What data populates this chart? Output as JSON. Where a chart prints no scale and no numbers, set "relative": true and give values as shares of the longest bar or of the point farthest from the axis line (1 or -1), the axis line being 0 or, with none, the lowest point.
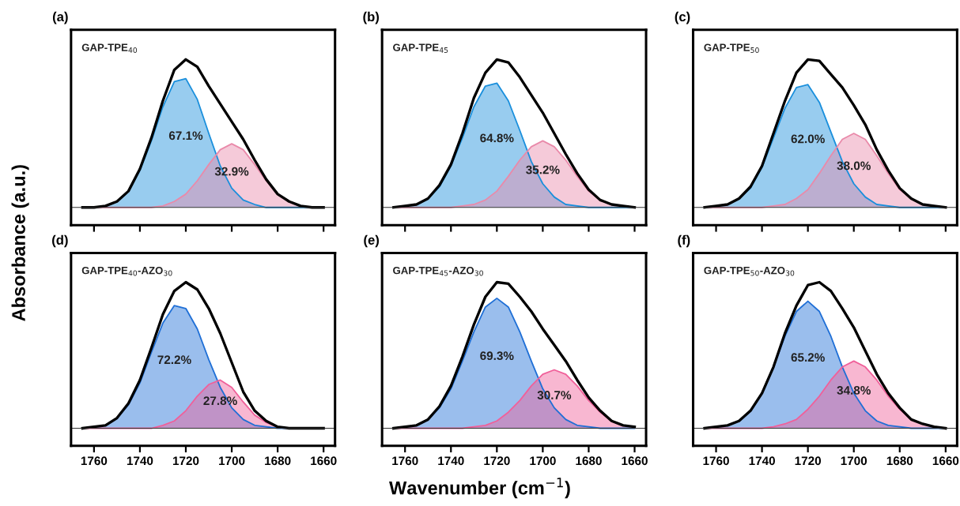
{
  "chart_data": [
    {
      "type": "area",
      "title": "(a)",
      "ylabel": "Absorbance (a.u.)",
      "relative": true,
      "tick_labels": false,
      "xlim": [
        1770,
        1655
      ],
      "xticks": [
        1760,
        1740,
        1720,
        1700,
        1680,
        1660
      ],
      "x": [
        1765,
        1760,
        1755,
        1750,
        1745,
        1740,
        1735,
        1730,
        1725,
        1720,
        1715,
        1710,
        1705,
        1700,
        1695,
        1690,
        1685,
        1680,
        1675,
        1670,
        1665,
        1660
      ],
      "annotations": [
        "GAP-TPE$_{40}$",
        "67.1%",
        "32.9%"
      ],
      "series": [
        {
          "color": "#1a8fdc",
          "values": [
            0,
            0,
            0.01,
            0.04,
            0.11,
            0.25,
            0.45,
            0.68,
            0.85,
            0.87,
            0.73,
            0.5,
            0.28,
            0.13,
            0.05,
            0.02,
            0,
            0,
            0,
            0,
            0,
            0
          ]
        },
        {
          "color": "#e98aaa",
          "values": [
            0,
            0,
            0,
            0,
            0,
            0,
            0,
            0.01,
            0.04,
            0.09,
            0.18,
            0.29,
            0.39,
            0.43,
            0.39,
            0.29,
            0.18,
            0.09,
            0.04,
            0.01,
            0,
            0
          ]
        },
        {
          "type": "line",
          "color": "#000000",
          "values": [
            0,
            0,
            0.01,
            0.04,
            0.11,
            0.26,
            0.47,
            0.72,
            0.93,
            1.0,
            0.95,
            0.82,
            0.7,
            0.58,
            0.46,
            0.32,
            0.19,
            0.09,
            0.04,
            0.01,
            0,
            0
          ]
        }
      ]
    },
    {
      "type": "area",
      "title": "(b)",
      "relative": true,
      "tick_labels": false,
      "xlim": [
        1770,
        1655
      ],
      "xticks": [
        1760,
        1740,
        1720,
        1700,
        1680,
        1660
      ],
      "x": [
        1765,
        1760,
        1755,
        1750,
        1745,
        1740,
        1735,
        1730,
        1725,
        1720,
        1715,
        1710,
        1705,
        1700,
        1695,
        1690,
        1685,
        1680,
        1675,
        1670,
        1665,
        1660
      ],
      "annotations": [
        "GAP-TPE$_{45}$",
        "64.8%",
        "35.2%"
      ],
      "series": [
        {
          "color": "#1a8fdc",
          "values": [
            0,
            0.01,
            0.02,
            0.06,
            0.14,
            0.28,
            0.47,
            0.68,
            0.82,
            0.84,
            0.72,
            0.52,
            0.31,
            0.16,
            0.07,
            0.02,
            0.01,
            0,
            0,
            0,
            0,
            0
          ]
        },
        {
          "color": "#e98aaa",
          "values": [
            0,
            0,
            0,
            0,
            0,
            0,
            0.01,
            0.02,
            0.05,
            0.11,
            0.21,
            0.32,
            0.41,
            0.45,
            0.41,
            0.32,
            0.21,
            0.11,
            0.05,
            0.02,
            0.01,
            0
          ]
        },
        {
          "type": "line",
          "color": "#000000",
          "values": [
            0,
            0.01,
            0.02,
            0.06,
            0.15,
            0.29,
            0.5,
            0.74,
            0.91,
            1.0,
            0.98,
            0.88,
            0.76,
            0.64,
            0.5,
            0.36,
            0.23,
            0.12,
            0.05,
            0.02,
            0.01,
            0
          ]
        }
      ]
    },
    {
      "type": "area",
      "title": "(c)",
      "relative": true,
      "tick_labels": false,
      "xlim": [
        1770,
        1655
      ],
      "xticks": [
        1760,
        1740,
        1720,
        1700,
        1680,
        1660
      ],
      "x": [
        1765,
        1760,
        1755,
        1750,
        1745,
        1740,
        1735,
        1730,
        1725,
        1720,
        1715,
        1710,
        1705,
        1700,
        1695,
        1690,
        1685,
        1680,
        1675,
        1670,
        1665,
        1660
      ],
      "annotations": [
        "GAP-TPE$_{50}$",
        "62.0%",
        "38.0%"
      ],
      "series": [
        {
          "color": "#1a8fdc",
          "values": [
            0,
            0.01,
            0.02,
            0.06,
            0.13,
            0.27,
            0.47,
            0.67,
            0.81,
            0.83,
            0.71,
            0.51,
            0.31,
            0.16,
            0.07,
            0.02,
            0.01,
            0,
            0,
            0,
            0,
            0
          ]
        },
        {
          "color": "#e98aaa",
          "values": [
            0,
            0,
            0,
            0,
            0,
            0,
            0.01,
            0.02,
            0.06,
            0.12,
            0.23,
            0.35,
            0.46,
            0.5,
            0.46,
            0.35,
            0.23,
            0.12,
            0.06,
            0.02,
            0.01,
            0
          ]
        },
        {
          "type": "line",
          "color": "#000000",
          "values": [
            0,
            0.01,
            0.02,
            0.06,
            0.14,
            0.28,
            0.5,
            0.72,
            0.91,
            1.0,
            0.99,
            0.9,
            0.81,
            0.69,
            0.56,
            0.39,
            0.25,
            0.13,
            0.06,
            0.02,
            0.01,
            0
          ]
        }
      ]
    },
    {
      "type": "area",
      "title": "(d)",
      "relative": true,
      "tick_labels": "x",
      "xlim": [
        1770,
        1655
      ],
      "xticks": [
        1760,
        1740,
        1720,
        1700,
        1680,
        1660
      ],
      "x": [
        1765,
        1760,
        1755,
        1750,
        1745,
        1740,
        1735,
        1730,
        1725,
        1720,
        1715,
        1710,
        1705,
        1700,
        1695,
        1690,
        1685,
        1680,
        1675,
        1670,
        1665,
        1660
      ],
      "annotations": [
        "GAP-TPE$_{40}$-AZO$_{30}$",
        "72.2%",
        "27.8%"
      ],
      "series": [
        {
          "color": "#1f6fd6",
          "values": [
            0,
            0.01,
            0.02,
            0.07,
            0.16,
            0.31,
            0.52,
            0.72,
            0.84,
            0.82,
            0.68,
            0.47,
            0.28,
            0.14,
            0.06,
            0.02,
            0.01,
            0,
            0,
            0,
            0,
            0
          ]
        },
        {
          "color": "#f0609a",
          "values": [
            0,
            0,
            0,
            0,
            0,
            0,
            0,
            0.02,
            0.05,
            0.12,
            0.22,
            0.3,
            0.33,
            0.28,
            0.18,
            0.09,
            0.04,
            0.01,
            0,
            0,
            0,
            0
          ]
        },
        {
          "type": "line",
          "color": "#000000",
          "values": [
            0,
            0.01,
            0.02,
            0.07,
            0.17,
            0.33,
            0.55,
            0.78,
            0.94,
            1.0,
            0.95,
            0.82,
            0.65,
            0.45,
            0.25,
            0.12,
            0.05,
            0.01,
            0,
            0,
            0,
            0
          ]
        }
      ]
    },
    {
      "type": "area",
      "title": "(e)",
      "xlabel": "Wavenumber (cm$^{−1}$)",
      "relative": true,
      "tick_labels": "x",
      "xlim": [
        1770,
        1655
      ],
      "xticks": [
        1760,
        1740,
        1720,
        1700,
        1680,
        1660
      ],
      "x": [
        1765,
        1760,
        1755,
        1750,
        1745,
        1740,
        1735,
        1730,
        1725,
        1720,
        1715,
        1710,
        1705,
        1700,
        1695,
        1690,
        1685,
        1680,
        1675,
        1670,
        1665,
        1660
      ],
      "annotations": [
        "GAP-TPE$_{45}$-AZO$_{30}$",
        "69.3%",
        "30.7%"
      ],
      "series": [
        {
          "color": "#1f6fd6",
          "values": [
            0,
            0.01,
            0.02,
            0.06,
            0.14,
            0.27,
            0.46,
            0.66,
            0.83,
            0.89,
            0.83,
            0.66,
            0.46,
            0.27,
            0.14,
            0.06,
            0.02,
            0.01,
            0,
            0,
            0,
            0
          ]
        },
        {
          "color": "#f0609a",
          "values": [
            0,
            0,
            0,
            0,
            0,
            0,
            0,
            0.01,
            0.02,
            0.05,
            0.11,
            0.19,
            0.29,
            0.37,
            0.4,
            0.37,
            0.29,
            0.19,
            0.11,
            0.05,
            0.02,
            0.01
          ]
        },
        {
          "type": "line",
          "color": "#000000",
          "values": [
            0,
            0.01,
            0.02,
            0.06,
            0.15,
            0.29,
            0.49,
            0.71,
            0.9,
            1.0,
            0.99,
            0.9,
            0.8,
            0.68,
            0.57,
            0.46,
            0.33,
            0.21,
            0.12,
            0.05,
            0.02,
            0.01
          ]
        }
      ]
    },
    {
      "type": "area",
      "title": "(f)",
      "relative": true,
      "tick_labels": "x",
      "xlim": [
        1770,
        1655
      ],
      "xticks": [
        1760,
        1740,
        1720,
        1700,
        1680,
        1660
      ],
      "x": [
        1765,
        1760,
        1755,
        1750,
        1745,
        1740,
        1735,
        1730,
        1725,
        1720,
        1715,
        1710,
        1705,
        1700,
        1695,
        1690,
        1685,
        1680,
        1675,
        1670,
        1665,
        1660
      ],
      "annotations": [
        "GAP-TPE$_{50}$-AZO$_{30}$",
        "65.2%",
        "34.8%"
      ],
      "series": [
        {
          "color": "#1f6fd6",
          "values": [
            0,
            0.01,
            0.02,
            0.05,
            0.12,
            0.24,
            0.42,
            0.63,
            0.8,
            0.87,
            0.8,
            0.63,
            0.42,
            0.24,
            0.12,
            0.05,
            0.02,
            0.01,
            0,
            0,
            0,
            0
          ]
        },
        {
          "color": "#f0609a",
          "values": [
            0,
            0,
            0,
            0,
            0,
            0,
            0.01,
            0.03,
            0.06,
            0.13,
            0.22,
            0.33,
            0.42,
            0.46,
            0.42,
            0.33,
            0.22,
            0.13,
            0.06,
            0.03,
            0.01,
            0
          ]
        },
        {
          "type": "line",
          "color": "#000000",
          "values": [
            0,
            0.01,
            0.02,
            0.05,
            0.12,
            0.24,
            0.42,
            0.65,
            0.84,
            0.98,
            1.0,
            0.94,
            0.82,
            0.69,
            0.53,
            0.37,
            0.24,
            0.14,
            0.06,
            0.03,
            0.01,
            0
          ]
        }
      ]
    }
  ]
}
